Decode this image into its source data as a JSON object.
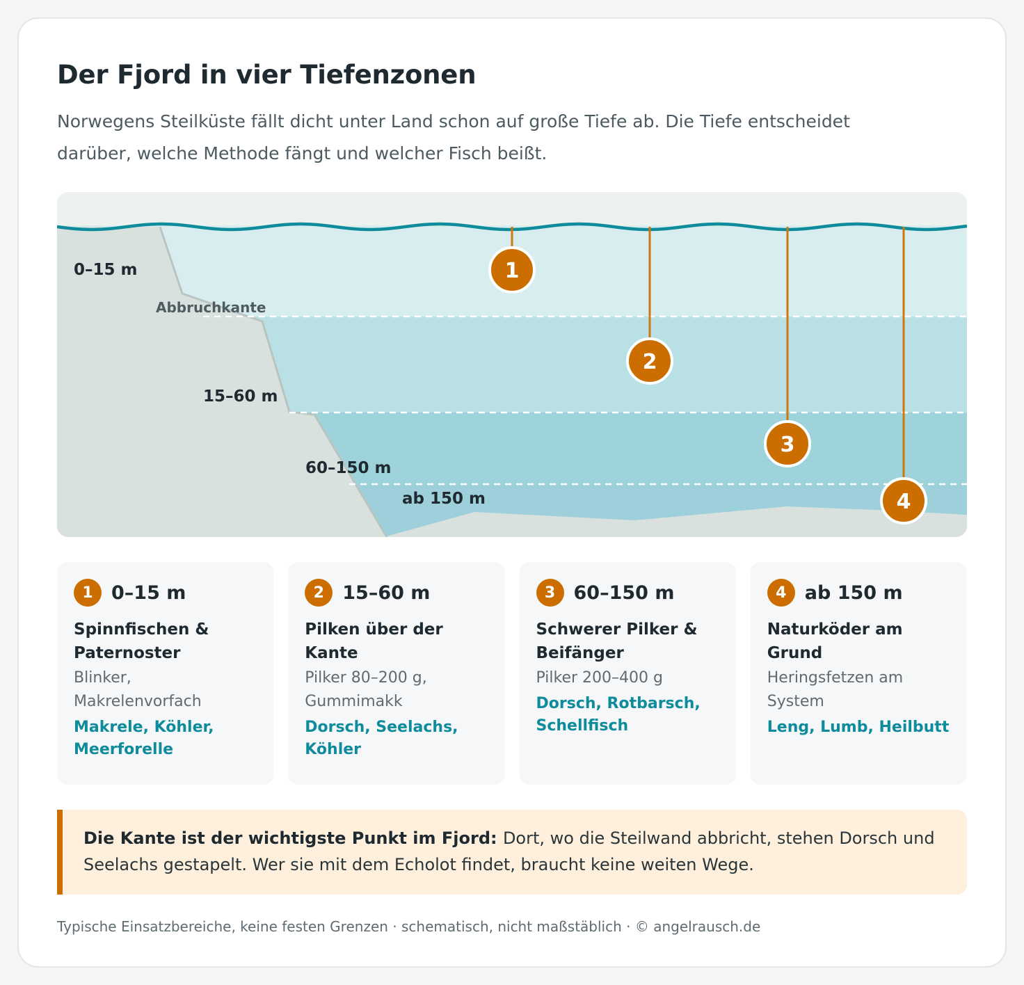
{
  "title": "Der Fjord in vier Tiefenzonen",
  "lead": "Norwegens Steilküste fällt dicht unter Land schon auf große Tiefe ab. Die Tiefe entscheidet darüber, welche Methode fängt und welcher Fisch beißt.",
  "diagram": {
    "edge_label": "Abbruchkante",
    "zone_labels": [
      "0–15 m",
      "15–60 m",
      "60–150 m",
      "ab 150 m"
    ],
    "markers": [
      "1",
      "2",
      "3",
      "4"
    ],
    "colors": {
      "water_surface": "#0e8c9c",
      "zone1": "#d8edf0",
      "zone2": "#b9e0e5",
      "zone3": "#9fd3dc",
      "land": "#d9e1df",
      "marker": "#cc6d00"
    }
  },
  "zones": [
    {
      "number": "1",
      "depth": "0–15 m",
      "method": "Spinnfischen & Paternoster",
      "gear": "Blinker, Makrelenvorfach",
      "fish": "Makrele, Köhler, Meerforelle"
    },
    {
      "number": "2",
      "depth": "15–60 m",
      "method": "Pilken über der Kante",
      "gear": "Pilker 80–200 g, Gummimakk",
      "fish": "Dorsch, Seelachs, Köhler"
    },
    {
      "number": "3",
      "depth": "60–150 m",
      "method": "Schwerer Pilker & Beifänger",
      "gear": "Pilker 200–400 g",
      "fish": "Dorsch, Rotbarsch, Schellfisch"
    },
    {
      "number": "4",
      "depth": "ab 150 m",
      "method": "Naturköder am Grund",
      "gear": "Heringsfetzen am System",
      "fish": "Leng, Lumb, Heilbutt"
    }
  ],
  "tip": {
    "lead": "Die Kante ist der wichtigste Punkt im Fjord:",
    "text": "Dort, wo die Steilwand abbricht, stehen Dorsch und Seelachs gestapelt. Wer sie mit dem Echolot findet, braucht keine weiten Wege."
  },
  "footer": "Typische Einsatzbereiche, keine festen Grenzen · schematisch, nicht maßstäblich · © angelrausch.de"
}
